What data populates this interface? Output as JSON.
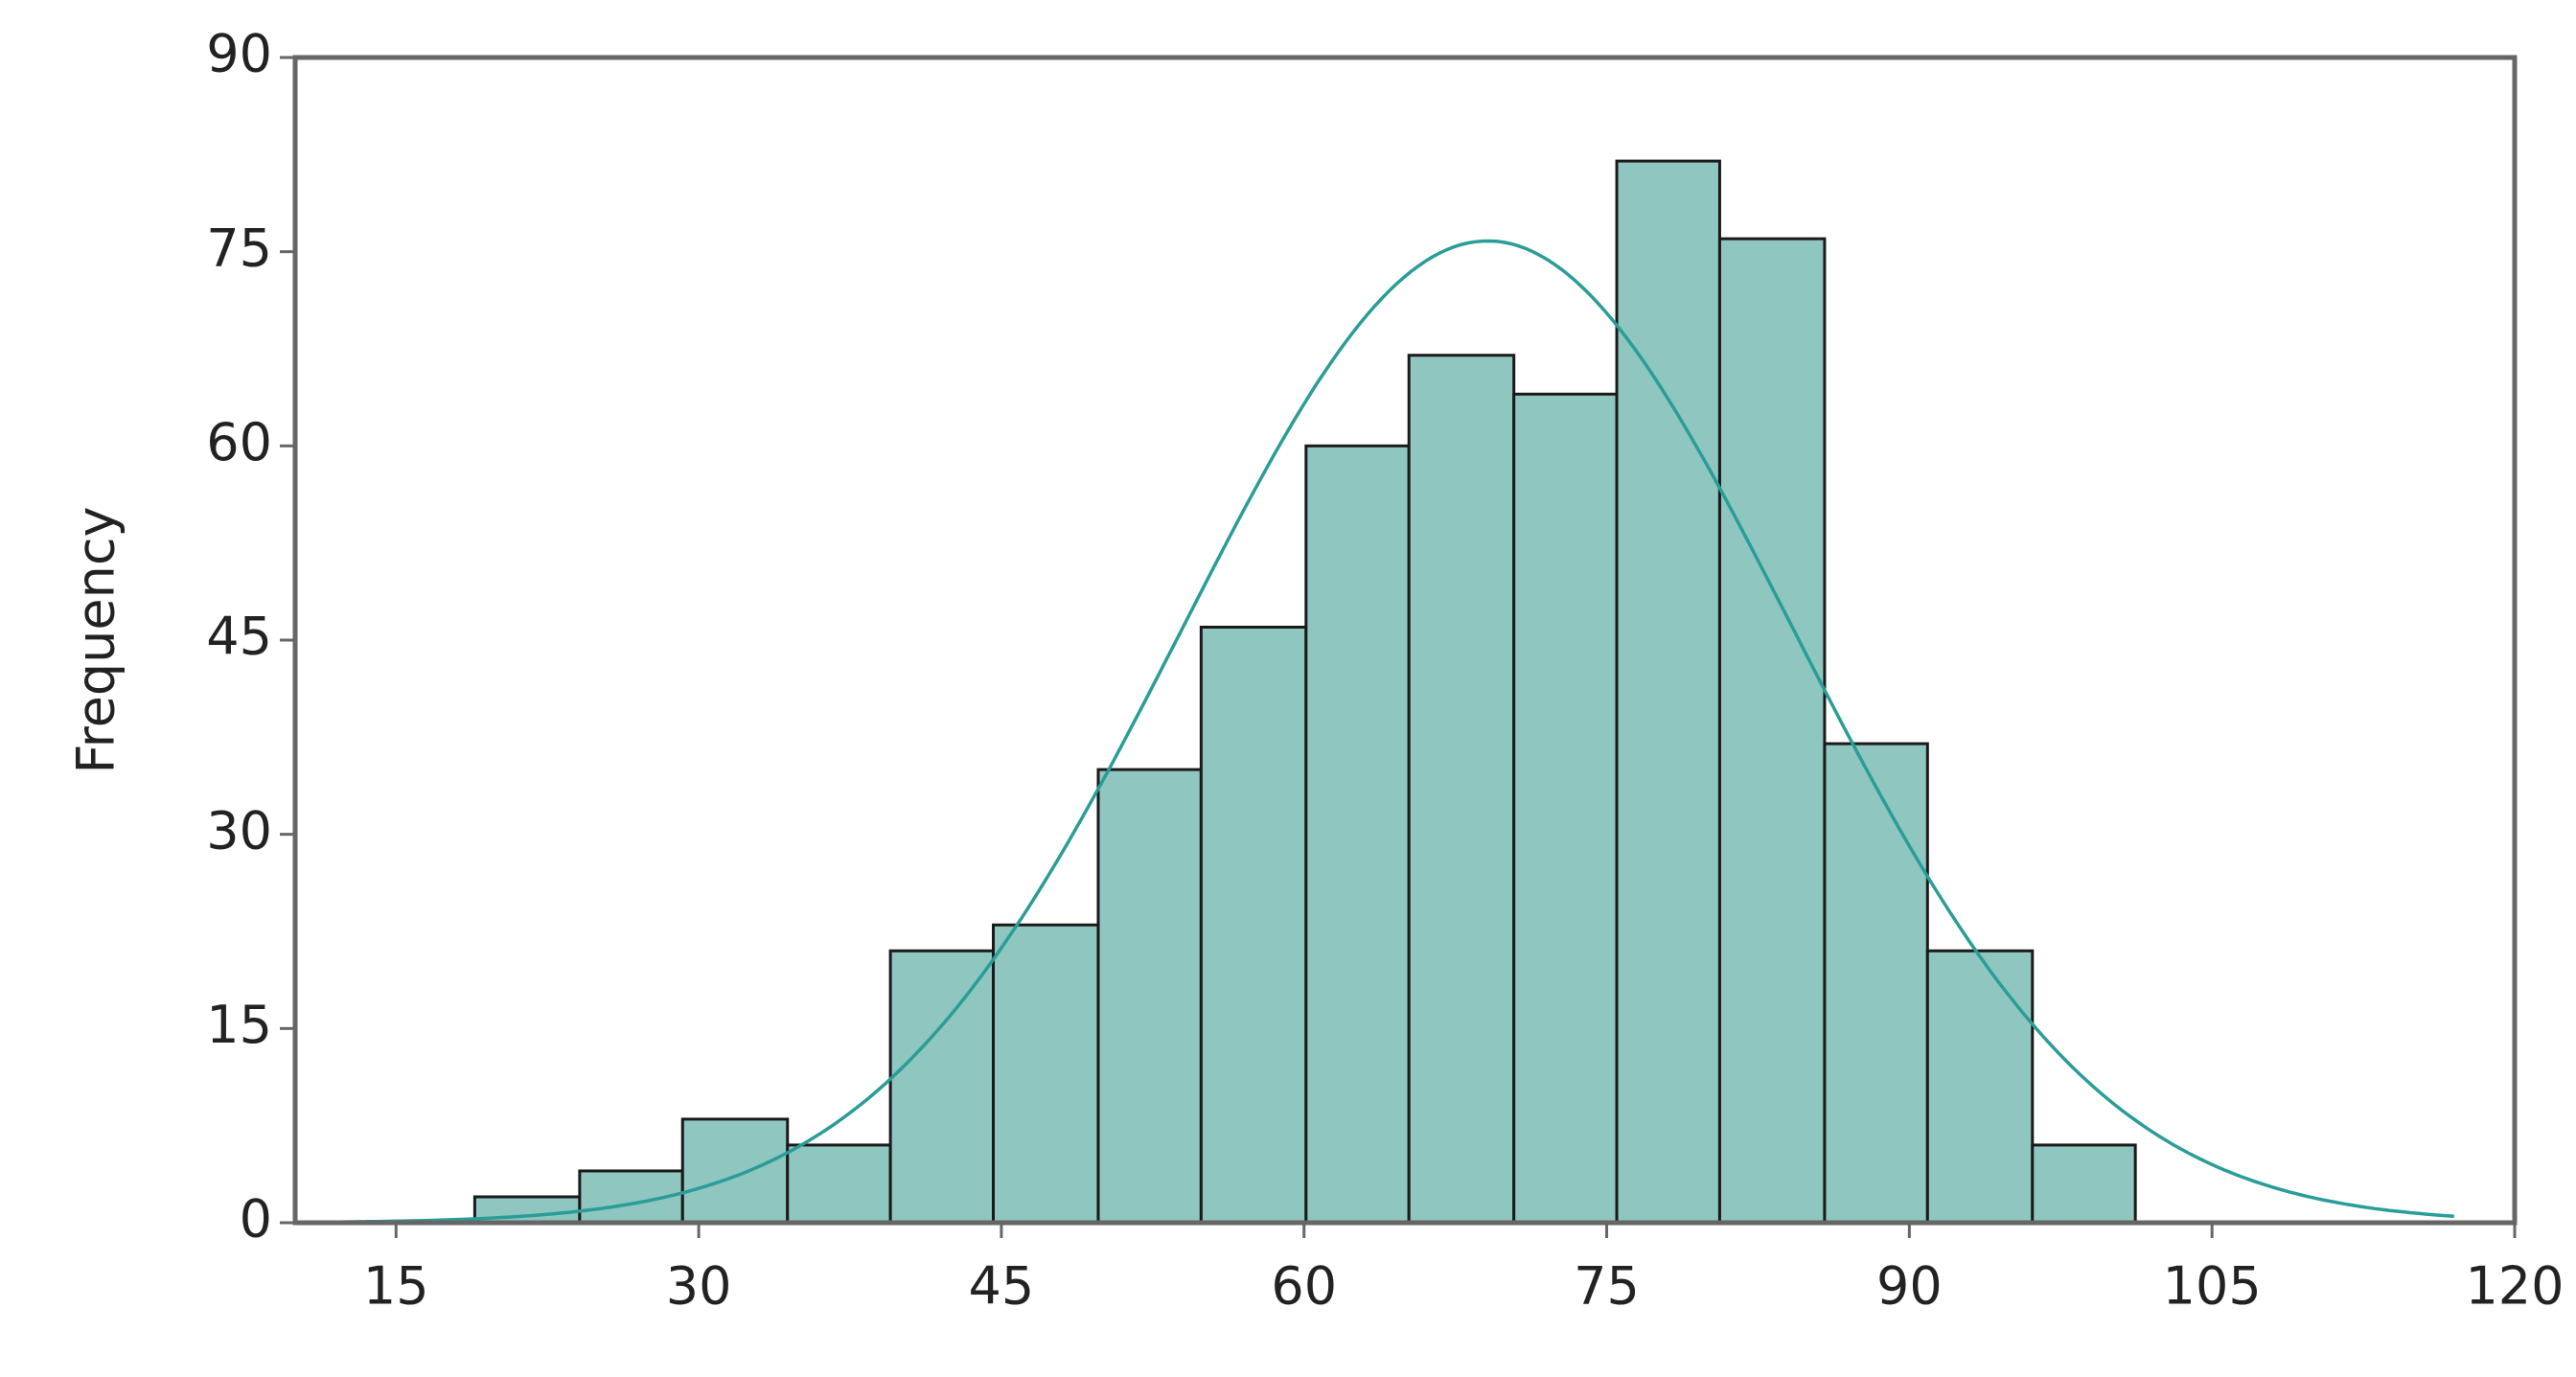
{
  "chart_data": {
    "type": "histogram",
    "y_label": "Frequency",
    "bins": [
      18.9,
      24.1,
      29.2,
      34.4,
      39.5,
      44.6,
      49.8,
      54.9,
      60.1,
      65.2,
      70.4,
      75.5,
      80.6,
      85.8,
      90.9,
      96.1,
      101.2
    ],
    "values": [
      2,
      4,
      8,
      6,
      21,
      23,
      35,
      46,
      60,
      67,
      64,
      82,
      76,
      37,
      21,
      6
    ],
    "color": "#8fc6c0",
    "edge_color": "#1a1a1a",
    "normal_fit": {
      "mean": 69.1,
      "sd": 15.1,
      "x": [
        10,
        117
      ],
      "color": "#2a9d98"
    },
    "xlim": [
      10,
      120
    ],
    "xticks": [
      15,
      30,
      45,
      60,
      75,
      90,
      105,
      120
    ],
    "ylim": [
      0,
      90
    ],
    "yticks": [
      0,
      15,
      30,
      45,
      60,
      75,
      90
    ]
  }
}
